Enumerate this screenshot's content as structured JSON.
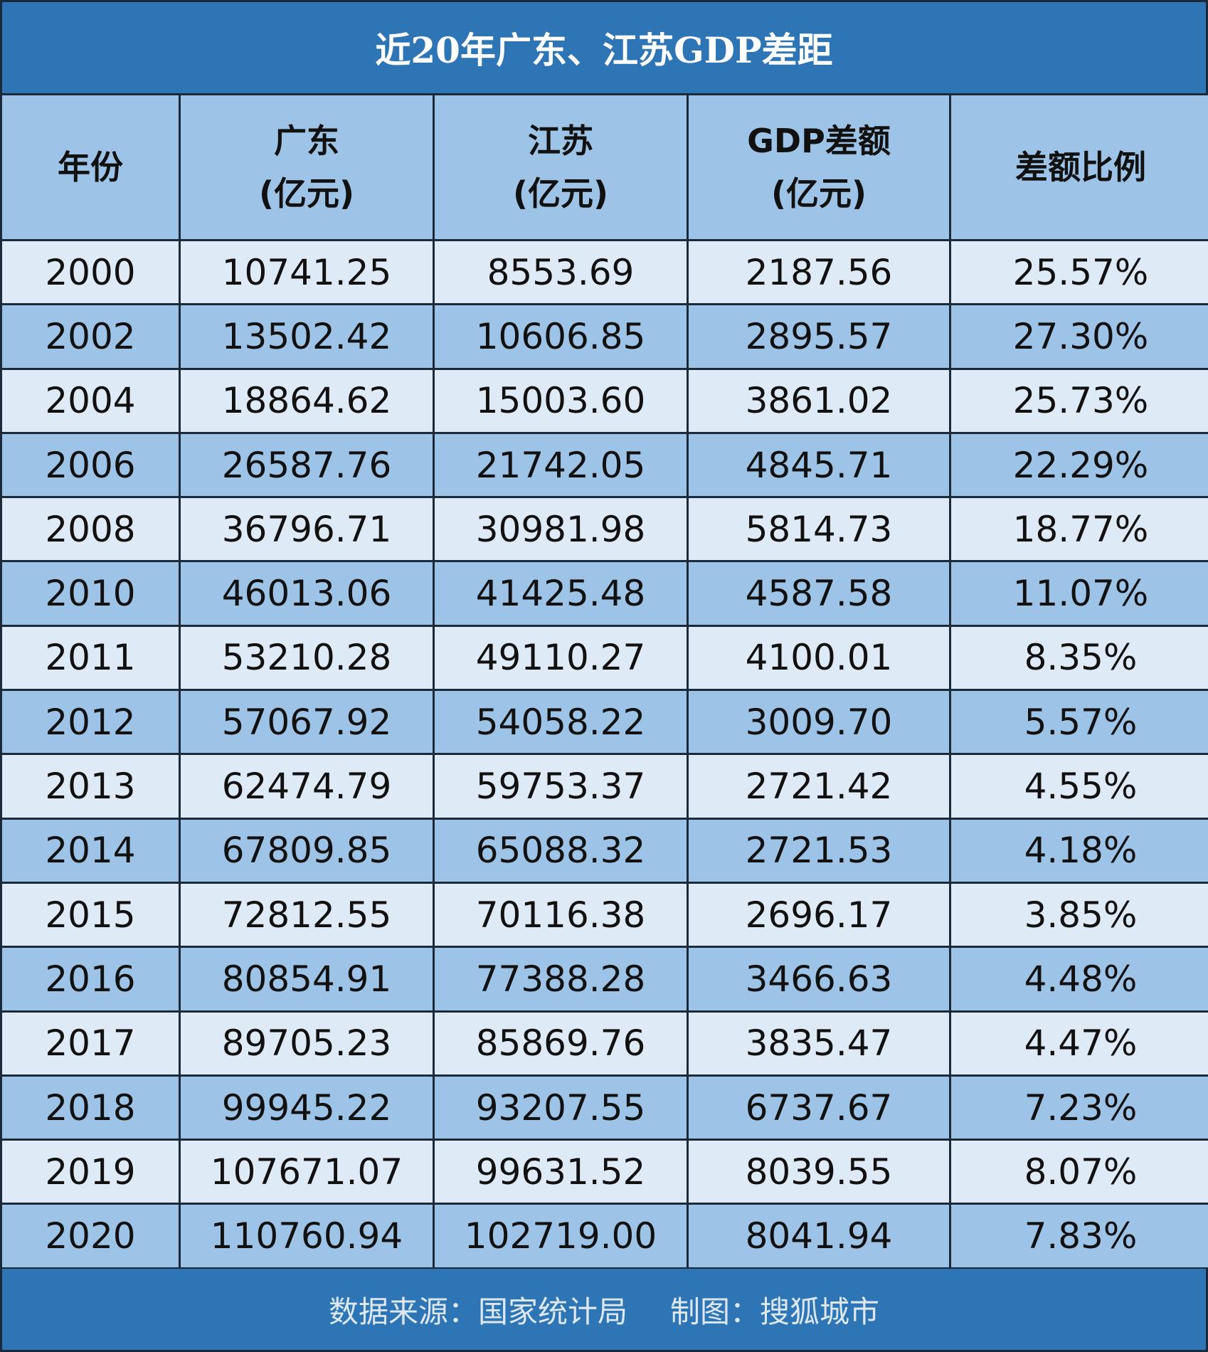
{
  "header": {
    "title": "近20年广东、江苏GDP差距"
  },
  "table": {
    "columns": [
      [
        "年份"
      ],
      [
        "广东",
        "(亿元)"
      ],
      [
        "江苏",
        "(亿元)"
      ],
      [
        "GDP差额",
        "(亿元)"
      ],
      [
        "差额比例"
      ]
    ],
    "rows": [
      [
        "2000",
        "10741.25",
        "8553.69",
        "2187.56",
        "25.57%"
      ],
      [
        "2002",
        "13502.42",
        "10606.85",
        "2895.57",
        "27.30%"
      ],
      [
        "2004",
        "18864.62",
        "15003.60",
        "3861.02",
        "25.73%"
      ],
      [
        "2006",
        "26587.76",
        "21742.05",
        "4845.71",
        "22.29%"
      ],
      [
        "2008",
        "36796.71",
        "30981.98",
        "5814.73",
        "18.77%"
      ],
      [
        "2010",
        "46013.06",
        "41425.48",
        "4587.58",
        "11.07%"
      ],
      [
        "2011",
        "53210.28",
        "49110.27",
        "4100.01",
        "8.35%"
      ],
      [
        "2012",
        "57067.92",
        "54058.22",
        "3009.70",
        "5.57%"
      ],
      [
        "2013",
        "62474.79",
        "59753.37",
        "2721.42",
        "4.55%"
      ],
      [
        "2014",
        "67809.85",
        "65088.32",
        "2721.53",
        "4.18%"
      ],
      [
        "2015",
        "72812.55",
        "70116.38",
        "2696.17",
        "3.85%"
      ],
      [
        "2016",
        "80854.91",
        "77388.28",
        "3466.63",
        "4.48%"
      ],
      [
        "2017",
        "89705.23",
        "85869.76",
        "3835.47",
        "4.47%"
      ],
      [
        "2018",
        "99945.22",
        "93207.55",
        "6737.67",
        "7.23%"
      ],
      [
        "2019",
        "107671.07",
        "99631.52",
        "8039.55",
        "8.07%"
      ],
      [
        "2020",
        "110760.94",
        "102719.00",
        "8041.94",
        "7.83%"
      ]
    ]
  },
  "footer": {
    "source": "数据来源：国家统计局",
    "credit": "制图：搜狐城市"
  }
}
